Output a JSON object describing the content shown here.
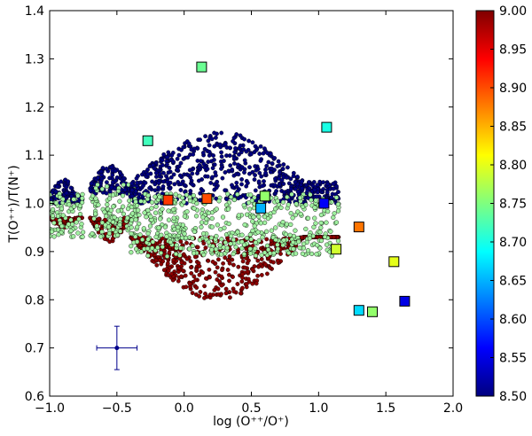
{
  "chart_data": {
    "type": "scatter",
    "title": "",
    "xlabel": "log (O⁺⁺/O⁺)",
    "ylabel": "T(O⁺⁺)/T(N⁺)",
    "xlim": [
      -1.0,
      2.0
    ],
    "ylim": [
      0.6,
      1.4
    ],
    "xticks": [
      -1.0,
      -0.5,
      0.0,
      0.5,
      1.0,
      1.5,
      2.0
    ],
    "xtick_labels": [
      "−1.0",
      "−0.5",
      "0.0",
      "0.5",
      "1.0",
      "1.5",
      "2.0"
    ],
    "yticks": [
      0.6,
      0.7,
      0.8,
      0.9,
      1.0,
      1.1,
      1.2,
      1.3,
      1.4
    ],
    "ytick_labels": [
      "0.6",
      "0.7",
      "0.8",
      "0.9",
      "1.0",
      "1.1",
      "1.2",
      "1.3",
      "1.4"
    ],
    "grid": false,
    "colorbar": {
      "range": [
        8.5,
        9.0
      ],
      "ticks": [
        8.5,
        8.55,
        8.6,
        8.65,
        8.7,
        8.75,
        8.8,
        8.85,
        8.9,
        8.95,
        9.0
      ],
      "tick_labels": [
        "8.50",
        "8.55",
        "8.60",
        "8.65",
        "8.70",
        "8.75",
        "8.80",
        "8.85",
        "8.90",
        "8.95",
        "9.00"
      ],
      "colormap": "jet",
      "stops": [
        "#00007f",
        "#0000ff",
        "#007fff",
        "#00ffff",
        "#7fff7f",
        "#ffff00",
        "#ff7f00",
        "#ff0000",
        "#7f0000"
      ]
    },
    "model_grid": {
      "marker": "circle",
      "edge_color": "#000000",
      "colors": {
        "low": "#000080",
        "mid": "#a0f0a0",
        "high": "#8b0000"
      },
      "clusters": [
        {
          "x_range": [
            -1.0,
            -0.75
          ],
          "y_low": 0.97,
          "y_mid": 1.0,
          "y_high": 1.05,
          "y_bottom": 0.95
        },
        {
          "x_range": [
            -0.7,
            -0.35
          ],
          "y_low": 0.97,
          "y_mid": 1.02,
          "y_high": 1.08,
          "y_bottom": 0.92
        },
        {
          "x_range": [
            -0.4,
            1.15
          ],
          "y_low": 0.93,
          "y_mid": 1.0,
          "y_high": 1.15,
          "y_bottom": 0.8
        }
      ]
    },
    "observations": [
      {
        "x": 0.13,
        "y": 1.283,
        "z": 8.74
      },
      {
        "x": -0.27,
        "y": 1.13,
        "z": 8.72
      },
      {
        "x": 1.06,
        "y": 1.158,
        "z": 8.7
      },
      {
        "x": -0.12,
        "y": 1.007,
        "z": 8.91
      },
      {
        "x": 0.17,
        "y": 1.01,
        "z": 8.9
      },
      {
        "x": 0.6,
        "y": 1.015,
        "z": 8.76
      },
      {
        "x": 0.57,
        "y": 0.99,
        "z": 8.65
      },
      {
        "x": 1.04,
        "y": 1.0,
        "z": 8.56
      },
      {
        "x": 1.3,
        "y": 0.951,
        "z": 8.88
      },
      {
        "x": 1.13,
        "y": 0.905,
        "z": 8.79
      },
      {
        "x": 1.56,
        "y": 0.879,
        "z": 8.8
      },
      {
        "x": 1.64,
        "y": 0.797,
        "z": 8.55
      },
      {
        "x": 1.3,
        "y": 0.778,
        "z": 8.67
      },
      {
        "x": 1.4,
        "y": 0.775,
        "z": 8.76
      }
    ],
    "error_bar_point": {
      "x": -0.5,
      "y": 0.7,
      "xerr": 0.15,
      "yerr": 0.045,
      "color": "#00008b"
    }
  }
}
